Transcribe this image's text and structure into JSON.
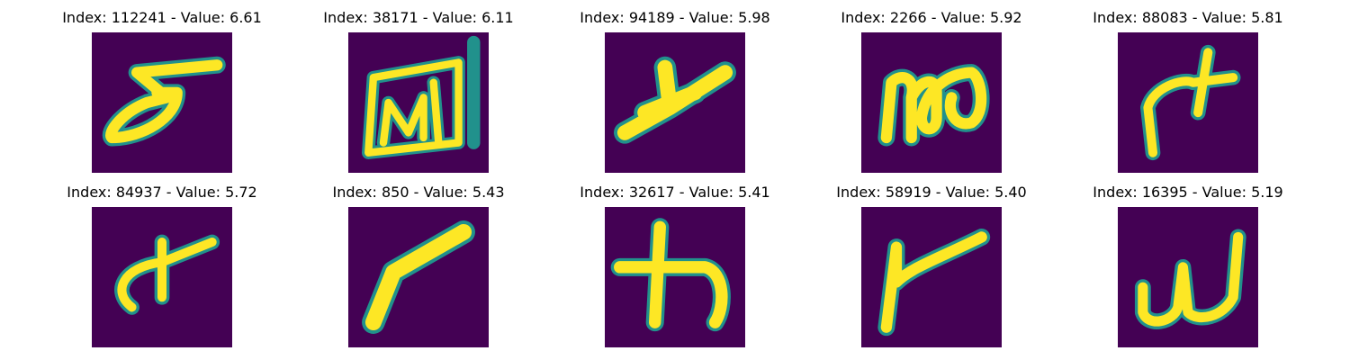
{
  "colors": {
    "background": "#440154",
    "stroke_edge": "#21918c",
    "stroke_mid": "#5ec962",
    "stroke_core": "#fde725"
  },
  "panels": [
    {
      "title": "Index: 112241 - Value: 6.61",
      "glyph": "glyph-sigma-loop"
    },
    {
      "title": "Index: 38171 - Value: 6.11",
      "glyph": "glyph-boxed-w"
    },
    {
      "title": "Index: 94189 - Value: 5.98",
      "glyph": "glyph-diagonal-y"
    },
    {
      "title": "Index: 2266 - Value: 5.92",
      "glyph": "glyph-loop-m"
    },
    {
      "title": "Index: 88083 - Value: 5.81",
      "glyph": "glyph-hook-cross"
    },
    {
      "title": "Index: 84937 - Value: 5.72",
      "glyph": "glyph-swoosh-cross"
    },
    {
      "title": "Index: 850 - Value: 5.43",
      "glyph": "glyph-diagonal-stroke"
    },
    {
      "title": "Index: 32617 - Value: 5.41",
      "glyph": "glyph-ka"
    },
    {
      "title": "Index: 58919 - Value: 5.40",
      "glyph": "glyph-hooked-r"
    },
    {
      "title": "Index: 16395 - Value: 5.19",
      "glyph": "glyph-cursive-w"
    }
  ]
}
